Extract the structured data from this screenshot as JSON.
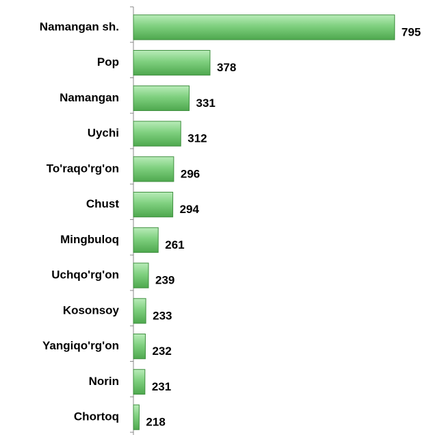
{
  "chart_data": {
    "type": "bar",
    "orientation": "horizontal",
    "categories": [
      "Namangan sh.",
      "Pop",
      "Namangan",
      "Uychi",
      "To'raqo'rg'on",
      "Chust",
      "Mingbuloq",
      "Uchqo'rg'on",
      "Kosonsoy",
      "Yangiqo'rg'on",
      "Norin",
      "Chortoq"
    ],
    "values": [
      795,
      378,
      331,
      312,
      296,
      294,
      261,
      239,
      233,
      232,
      231,
      218
    ],
    "color": "#7fd07f",
    "xlim": [
      205,
      800
    ]
  }
}
